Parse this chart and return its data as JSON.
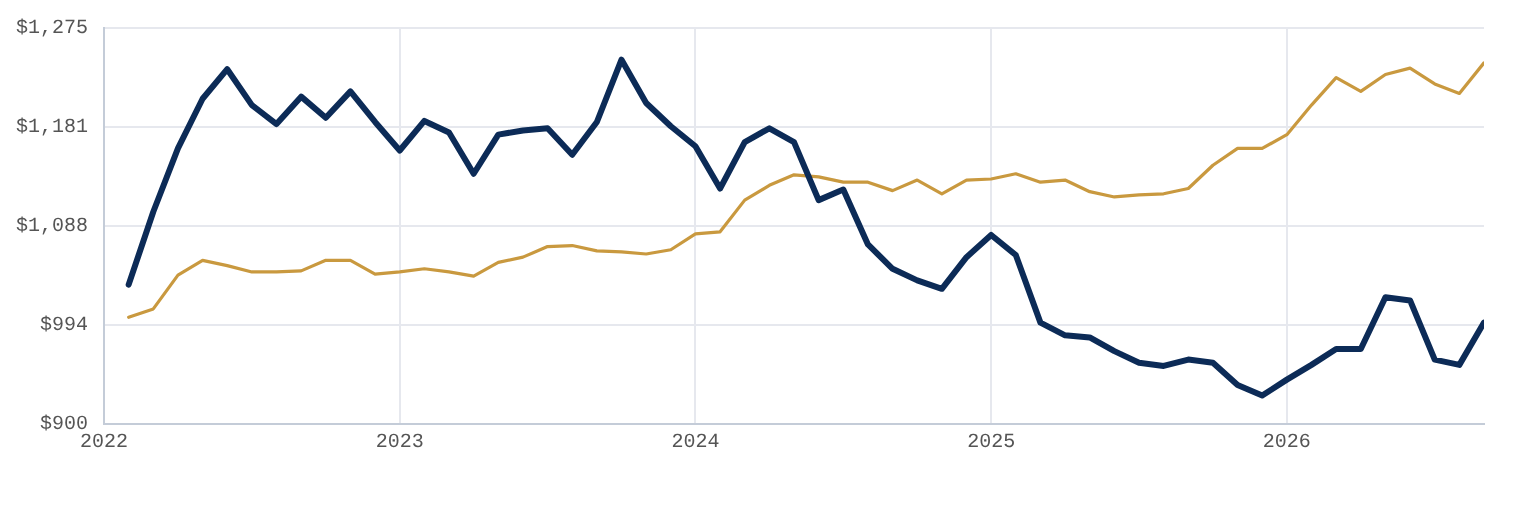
{
  "chart_data": {
    "type": "line",
    "x": [
      "2022-02",
      "2022-03",
      "2022-04",
      "2022-05",
      "2022-06",
      "2022-07",
      "2022-08",
      "2022-09",
      "2022-10",
      "2022-11",
      "2022-12",
      "2023-01",
      "2023-02",
      "2023-03",
      "2023-04",
      "2023-05",
      "2023-06",
      "2023-07",
      "2023-08",
      "2023-09",
      "2023-10",
      "2023-11",
      "2023-12",
      "2024-01",
      "2024-02",
      "2024-03",
      "2024-04",
      "2024-05",
      "2024-06",
      "2024-07",
      "2024-08",
      "2024-09",
      "2024-10",
      "2024-11",
      "2024-12",
      "2025-01",
      "2025-02",
      "2025-03",
      "2025-04",
      "2025-05",
      "2025-06",
      "2025-07",
      "2025-08",
      "2025-09",
      "2025-10",
      "2025-11",
      "2025-12",
      "2026-01",
      "2026-02",
      "2026-03",
      "2026-04",
      "2026-05",
      "2026-06",
      "2026-07",
      "2026-08",
      "2026-09"
    ],
    "series": [
      {
        "color": "#0c2b57",
        "values": [
          1032,
          1101,
          1161,
          1208,
          1236,
          1202,
          1184,
          1210,
          1190,
          1215,
          1186,
          1159,
          1187,
          1176,
          1137,
          1174,
          1178,
          1180,
          1155,
          1186,
          1245,
          1204,
          1182,
          1163,
          1123,
          1167,
          1180,
          1167,
          1112,
          1122,
          1070,
          1047,
          1036,
          1028,
          1058,
          1079,
          1060,
          996,
          984,
          982,
          969,
          958,
          955,
          961,
          958,
          937,
          927,
          942,
          956,
          971,
          971,
          1020,
          1017,
          961,
          956,
          996
        ]
      },
      {
        "color": "#c9993f",
        "values": [
          1001,
          1009,
          1041,
          1055,
          1050,
          1044,
          1044,
          1045,
          1055,
          1055,
          1042,
          1044,
          1047,
          1044,
          1040,
          1053,
          1058,
          1068,
          1069,
          1064,
          1063,
          1061,
          1065,
          1080,
          1082,
          1112,
          1126,
          1136,
          1134,
          1129,
          1129,
          1121,
          1131,
          1118,
          1131,
          1132,
          1137,
          1129,
          1131,
          1120,
          1115,
          1117,
          1118,
          1123,
          1145,
          1161,
          1161,
          1174,
          1202,
          1228,
          1215,
          1231,
          1237,
          1222,
          1213,
          1242
        ]
      }
    ],
    "xlim": [
      "2022-01",
      "2026-09"
    ],
    "xticks": [
      {
        "value": "2022",
        "label": "2022"
      },
      {
        "value": "2023",
        "label": "2023"
      },
      {
        "value": "2024",
        "label": "2024"
      },
      {
        "value": "2025",
        "label": "2025"
      },
      {
        "value": "2026",
        "label": "2026"
      }
    ],
    "ylim": [
      900,
      1275
    ],
    "yticks": [
      {
        "value": 900,
        "label": "$900"
      },
      {
        "value": 993.75,
        "label": "$994"
      },
      {
        "value": 1087.5,
        "label": "$1,088"
      },
      {
        "value": 1181.25,
        "label": "$1,181"
      },
      {
        "value": 1275,
        "label": "$1,275"
      }
    ],
    "grid": true,
    "legend": false,
    "marker": "none",
    "line_style": "solid"
  }
}
